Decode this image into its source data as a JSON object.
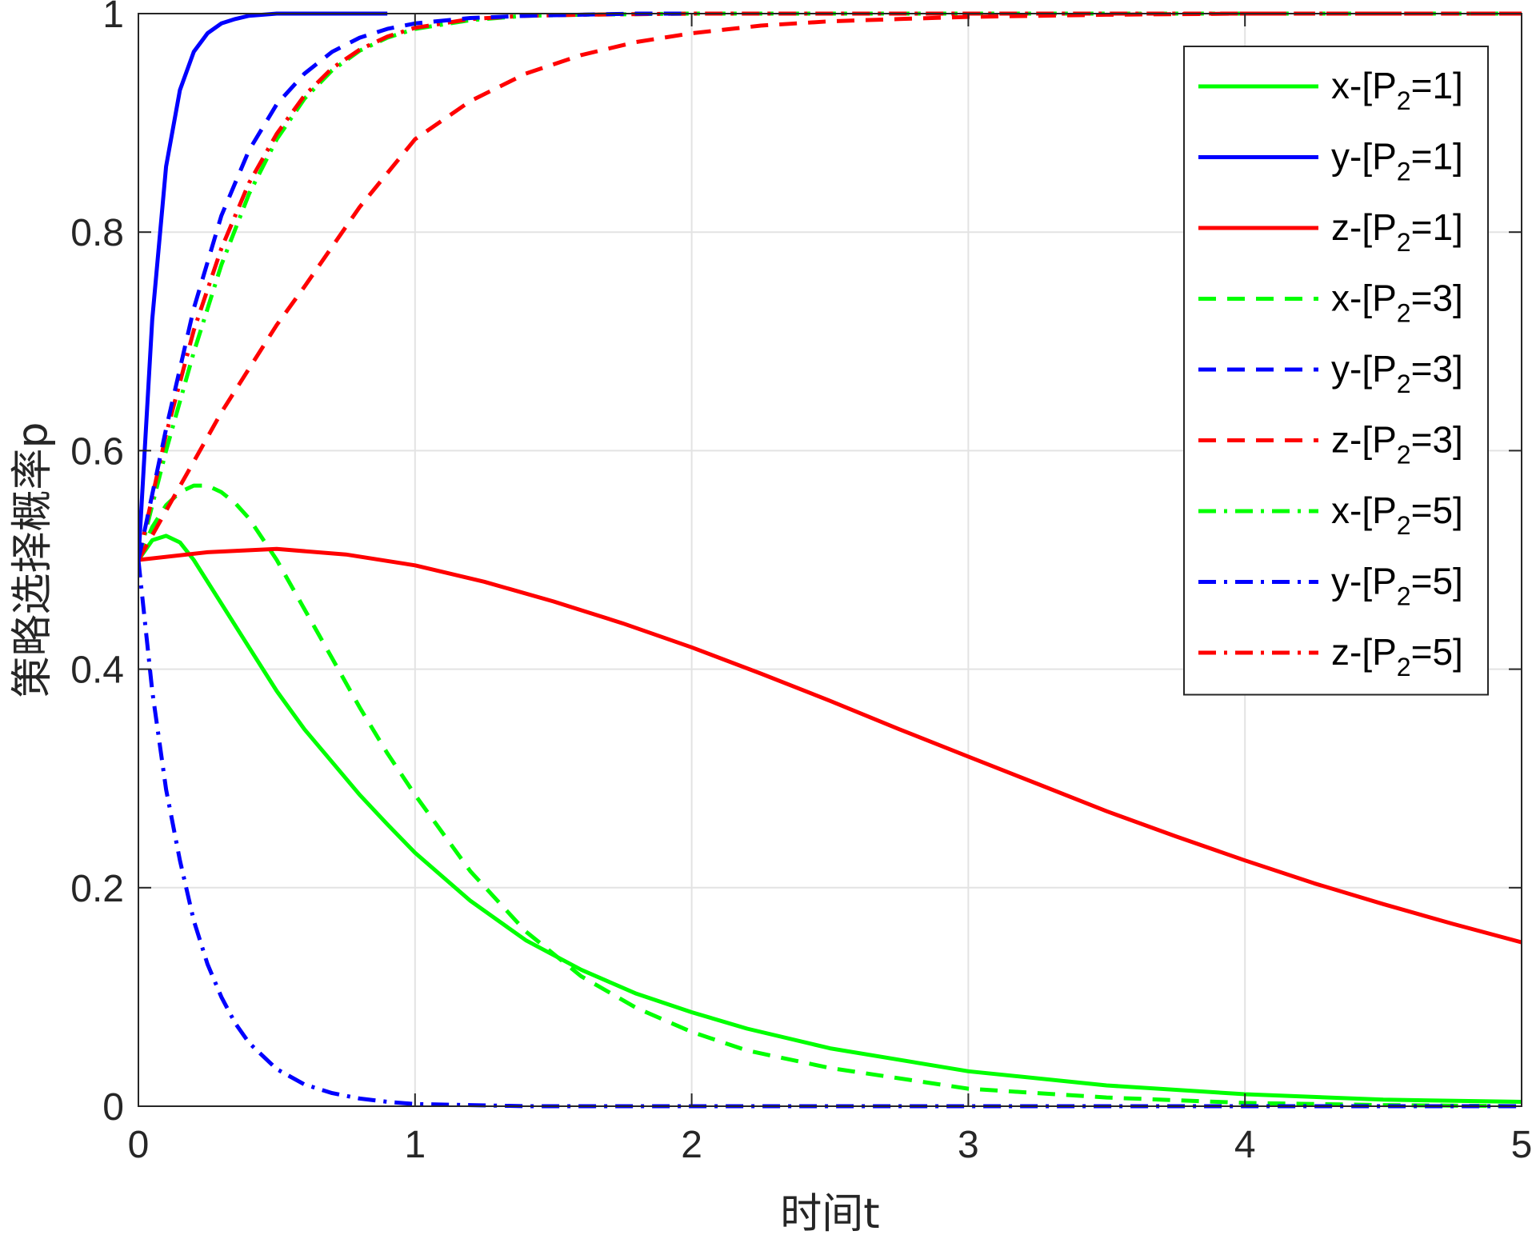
{
  "chart_data": {
    "type": "line",
    "title": "",
    "xlabel": "时间t",
    "ylabel": "策略选择概率p",
    "xlim": [
      0,
      5
    ],
    "ylim": [
      0,
      1
    ],
    "xticks": [
      "0",
      "1",
      "2",
      "3",
      "4",
      "5"
    ],
    "yticks": [
      "0",
      "0.2",
      "0.4",
      "0.6",
      "0.8",
      "1"
    ],
    "xtick_values": [
      0,
      1,
      2,
      3,
      4,
      5
    ],
    "ytick_values": [
      0,
      0.2,
      0.4,
      0.6,
      0.8,
      1
    ],
    "grid": true,
    "legend_position": "top-right",
    "series": [
      {
        "name": "x-[P2=1]",
        "legend": {
          "prefix": "x-[P",
          "sub": "2",
          "suffix": "=1]"
        },
        "color": "#00ff00",
        "dash": "solid",
        "x": [
          0,
          0.05,
          0.1,
          0.15,
          0.2,
          0.3,
          0.4,
          0.5,
          0.6,
          0.7,
          0.8,
          0.9,
          1.0,
          1.2,
          1.4,
          1.6,
          1.8,
          2.0,
          2.2,
          2.5,
          3.0,
          3.5,
          4.0,
          4.5,
          5.0
        ],
        "y": [
          0.5,
          0.518,
          0.522,
          0.516,
          0.5,
          0.46,
          0.42,
          0.38,
          0.345,
          0.315,
          0.285,
          0.258,
          0.232,
          0.188,
          0.152,
          0.125,
          0.103,
          0.086,
          0.071,
          0.053,
          0.032,
          0.019,
          0.011,
          0.006,
          0.004
        ]
      },
      {
        "name": "y-[P2=1]",
        "legend": {
          "prefix": "y-[P",
          "sub": "2",
          "suffix": "=1]"
        },
        "color": "#0000ff",
        "dash": "solid",
        "x": [
          0,
          0.05,
          0.1,
          0.15,
          0.2,
          0.25,
          0.3,
          0.35,
          0.4,
          0.5,
          0.6,
          0.7,
          0.8,
          0.9
        ],
        "y": [
          0.5,
          0.72,
          0.86,
          0.93,
          0.965,
          0.982,
          0.991,
          0.995,
          0.998,
          1.0,
          1.0,
          1.0,
          1.0,
          1.0
        ]
      },
      {
        "name": "z-[P2=1]",
        "legend": {
          "prefix": "z-[P",
          "sub": "2",
          "suffix": "=1]"
        },
        "color": "#ff0000",
        "dash": "solid",
        "x": [
          0,
          0.25,
          0.5,
          0.75,
          1.0,
          1.25,
          1.5,
          1.75,
          2.0,
          2.25,
          2.5,
          2.75,
          3.0,
          3.25,
          3.5,
          3.75,
          4.0,
          4.25,
          4.5,
          4.75,
          5.0
        ],
        "y": [
          0.5,
          0.507,
          0.51,
          0.505,
          0.495,
          0.48,
          0.462,
          0.442,
          0.42,
          0.396,
          0.371,
          0.345,
          0.32,
          0.295,
          0.27,
          0.247,
          0.225,
          0.204,
          0.185,
          0.167,
          0.15
        ]
      },
      {
        "name": "x-[P2=3]",
        "legend": {
          "prefix": "x-[P",
          "sub": "2",
          "suffix": "=3]"
        },
        "color": "#00ff00",
        "dash": "dashed",
        "x": [
          0,
          0.05,
          0.1,
          0.15,
          0.2,
          0.25,
          0.3,
          0.35,
          0.4,
          0.5,
          0.6,
          0.7,
          0.8,
          0.9,
          1.0,
          1.2,
          1.4,
          1.6,
          1.8,
          2.0,
          2.2,
          2.5,
          3.0,
          3.5,
          4.0,
          4.5,
          5.0
        ],
        "y": [
          0.5,
          0.53,
          0.55,
          0.562,
          0.568,
          0.568,
          0.562,
          0.552,
          0.538,
          0.5,
          0.455,
          0.41,
          0.365,
          0.323,
          0.285,
          0.215,
          0.16,
          0.119,
          0.09,
          0.068,
          0.051,
          0.035,
          0.016,
          0.008,
          0.003,
          0.001,
          0.0
        ]
      },
      {
        "name": "y-[P2=3]",
        "legend": {
          "prefix": "y-[P",
          "sub": "2",
          "suffix": "=3]"
        },
        "color": "#0000ff",
        "dash": "dashed",
        "x": [
          0,
          0.1,
          0.2,
          0.3,
          0.4,
          0.5,
          0.6,
          0.7,
          0.8,
          0.9,
          1.0,
          1.2,
          1.4,
          1.6,
          1.8,
          2.0
        ],
        "y": [
          0.5,
          0.62,
          0.73,
          0.815,
          0.875,
          0.917,
          0.945,
          0.965,
          0.978,
          0.986,
          0.991,
          0.996,
          0.998,
          0.999,
          1.0,
          1.0
        ]
      },
      {
        "name": "z-[P2=3]",
        "legend": {
          "prefix": "z-[P",
          "sub": "2",
          "suffix": "=3]"
        },
        "color": "#ff0000",
        "dash": "dashed",
        "x": [
          0,
          0.1,
          0.2,
          0.3,
          0.4,
          0.5,
          0.6,
          0.8,
          1.0,
          1.2,
          1.4,
          1.6,
          1.8,
          2.0,
          2.25,
          2.5,
          2.75,
          3.0,
          3.5,
          4.0,
          4.5,
          5.0
        ],
        "y": [
          0.5,
          0.545,
          0.59,
          0.635,
          0.675,
          0.715,
          0.75,
          0.823,
          0.885,
          0.92,
          0.945,
          0.962,
          0.974,
          0.982,
          0.989,
          0.993,
          0.995,
          0.997,
          0.999,
          1.0,
          1.0,
          1.0
        ]
      },
      {
        "name": "x-[P2=5]",
        "legend": {
          "prefix": "x-[P",
          "sub": "2",
          "suffix": "=5]"
        },
        "color": "#00ff00",
        "dash": "dashdot",
        "x": [
          0,
          0.1,
          0.2,
          0.3,
          0.4,
          0.5,
          0.6,
          0.7,
          0.8,
          0.9,
          1.0,
          1.2,
          1.4,
          1.6,
          2.0,
          3.0,
          4.0,
          5.0
        ],
        "y": [
          0.5,
          0.6,
          0.69,
          0.77,
          0.835,
          0.885,
          0.922,
          0.948,
          0.966,
          0.978,
          0.986,
          0.994,
          0.998,
          0.999,
          1.0,
          1.0,
          1.0,
          1.0
        ]
      },
      {
        "name": "y-[P2=5]",
        "legend": {
          "prefix": "y-[P",
          "sub": "2",
          "suffix": "=5]"
        },
        "color": "#0000ff",
        "dash": "dashdot",
        "x": [
          0,
          0.05,
          0.1,
          0.15,
          0.2,
          0.25,
          0.3,
          0.35,
          0.4,
          0.5,
          0.6,
          0.7,
          0.8,
          0.9,
          1.0,
          1.2,
          1.4,
          1.6,
          2.0,
          3.0,
          4.0,
          5.0
        ],
        "y": [
          0.5,
          0.38,
          0.29,
          0.225,
          0.17,
          0.13,
          0.1,
          0.076,
          0.058,
          0.034,
          0.02,
          0.012,
          0.007,
          0.004,
          0.002,
          0.001,
          0.0,
          0.0,
          0.0,
          0.0,
          0.0,
          0.0
        ]
      },
      {
        "name": "z-[P2=5]",
        "legend": {
          "prefix": "z-[P",
          "sub": "2",
          "suffix": "=5]"
        },
        "color": "#ff0000",
        "dash": "dashdot",
        "x": [
          0,
          0.1,
          0.2,
          0.3,
          0.4,
          0.5,
          0.6,
          0.7,
          0.8,
          0.9,
          1.0,
          1.2,
          1.4,
          1.6,
          2.0,
          3.0,
          4.0,
          5.0
        ],
        "y": [
          0.5,
          0.615,
          0.71,
          0.785,
          0.845,
          0.89,
          0.925,
          0.95,
          0.967,
          0.979,
          0.987,
          0.995,
          0.998,
          0.999,
          1.0,
          1.0,
          1.0,
          1.0
        ]
      }
    ]
  }
}
